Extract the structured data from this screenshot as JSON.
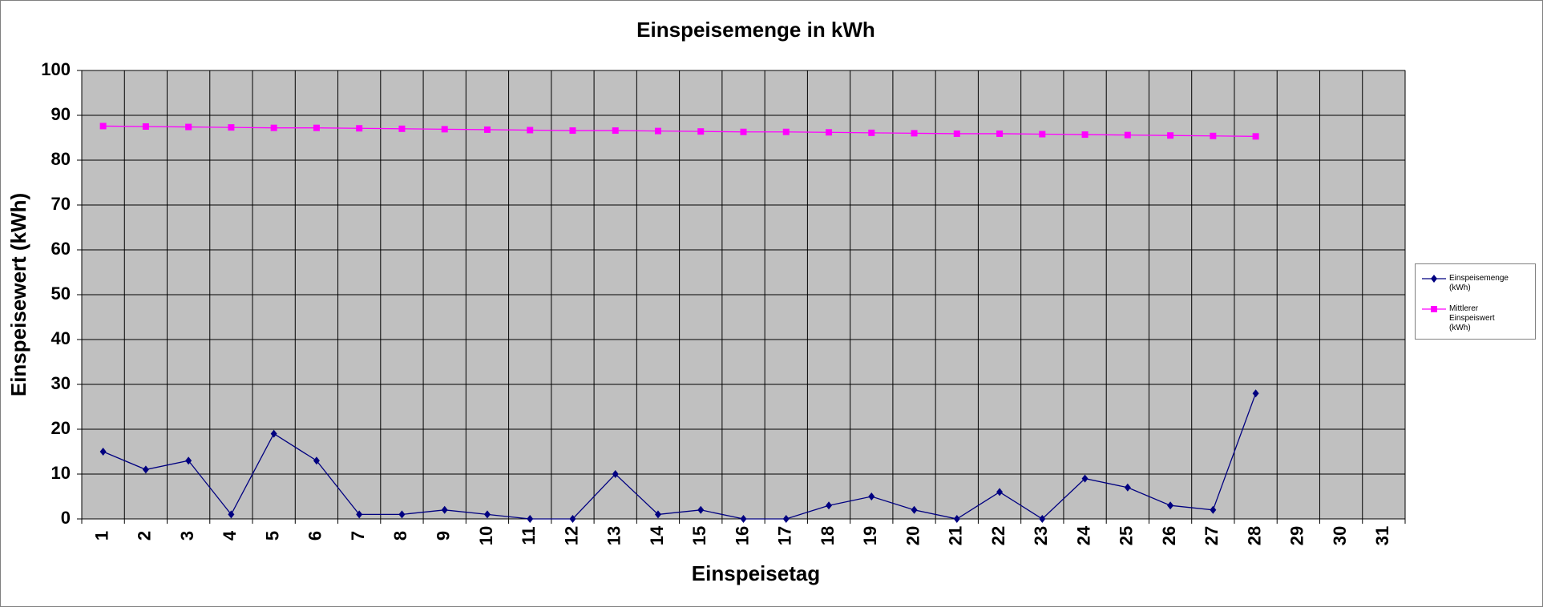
{
  "chart_data": {
    "type": "line",
    "title": "Einspeisemenge in kWh",
    "x_label": "Einspeisetag",
    "y_label": "Einspeisewert  (kWh)",
    "categories": [
      "1",
      "2",
      "3",
      "4",
      "5",
      "6",
      "7",
      "8",
      "9",
      "10",
      "11",
      "12",
      "13",
      "14",
      "15",
      "16",
      "17",
      "18",
      "19",
      "20",
      "21",
      "22",
      "23",
      "24",
      "25",
      "26",
      "27",
      "28",
      "29",
      "30",
      "31"
    ],
    "series": [
      {
        "name": "Einspeisemenge (kWh)",
        "color": "#000080",
        "marker": "diamond",
        "values": [
          15,
          11,
          13,
          1,
          19,
          13,
          1,
          1,
          2,
          1,
          0,
          0,
          10,
          1,
          2,
          0,
          0,
          3,
          5,
          2,
          0,
          6,
          0,
          9,
          7,
          3,
          2,
          28,
          null,
          null,
          null
        ]
      },
      {
        "name": "Mittlerer Einspeiswert (kWh)",
        "color": "#ff00ff",
        "marker": "square",
        "values": [
          87.6,
          87.5,
          87.4,
          87.3,
          87.2,
          87.2,
          87.1,
          87.0,
          86.9,
          86.8,
          86.7,
          86.6,
          86.6,
          86.5,
          86.4,
          86.3,
          86.3,
          86.2,
          86.1,
          86.0,
          85.9,
          85.9,
          85.8,
          85.7,
          85.6,
          85.5,
          85.4,
          85.3,
          null,
          null,
          null
        ]
      }
    ],
    "ylim": [
      0,
      100
    ],
    "yticks": [
      0,
      10,
      20,
      30,
      40,
      50,
      60,
      70,
      80,
      90,
      100
    ],
    "grid": true,
    "legend": "right",
    "plot_background": "#c0c0c0"
  }
}
